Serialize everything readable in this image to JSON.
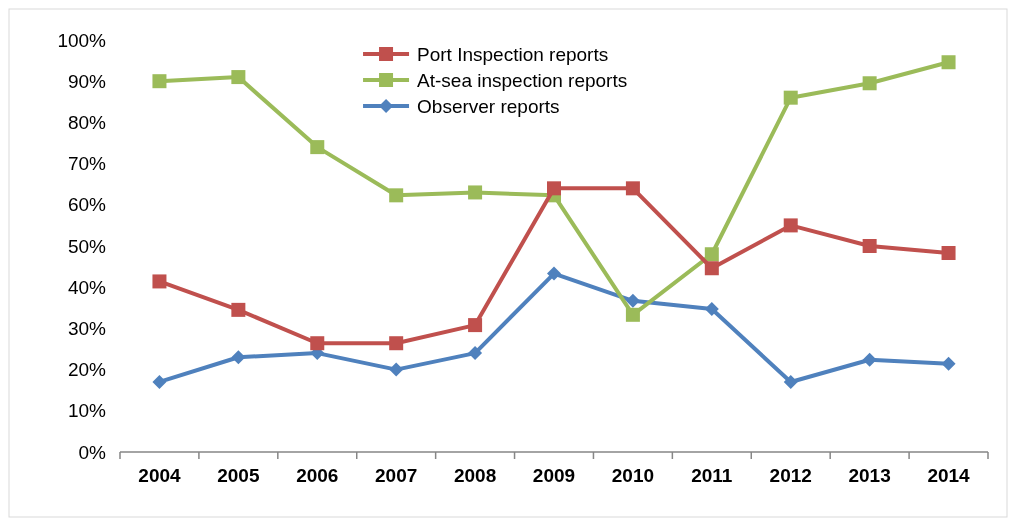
{
  "chart_data": {
    "type": "line",
    "categories": [
      "2004",
      "2005",
      "2006",
      "2007",
      "2008",
      "2009",
      "2010",
      "2011",
      "2012",
      "2013",
      "2014"
    ],
    "ylim": [
      0,
      100
    ],
    "yticks": [
      {
        "value": 0,
        "label": "0%"
      },
      {
        "value": 10,
        "label": "10%"
      },
      {
        "value": 20,
        "label": "20%"
      },
      {
        "value": 30,
        "label": "30%"
      },
      {
        "value": 40,
        "label": "40%"
      },
      {
        "value": 50,
        "label": "50%"
      },
      {
        "value": 60,
        "label": "60%"
      },
      {
        "value": 70,
        "label": "70%"
      },
      {
        "value": 80,
        "label": "80%"
      },
      {
        "value": 90,
        "label": "90%"
      },
      {
        "value": 100,
        "label": "100%"
      }
    ],
    "grid": false,
    "legend": "top",
    "line_style": "solid",
    "series": [
      {
        "name": "Port Inspection reports",
        "color": "#c0504d",
        "marker": "square",
        "values": [
          41.4,
          34.5,
          26.4,
          26.4,
          30.8,
          64,
          64,
          44.6,
          55,
          50,
          48.3
        ]
      },
      {
        "name": "At-sea inspection reports",
        "color": "#9bbb59",
        "marker": "square",
        "values": [
          90,
          91,
          74,
          62.3,
          63,
          62.3,
          33.3,
          48,
          86,
          89.5,
          94.6
        ]
      },
      {
        "name": "Observer reports",
        "color": "#4f81bd",
        "marker": "diamond",
        "values": [
          17,
          23,
          24,
          20,
          24,
          43.3,
          36.7,
          34.7,
          17,
          22.4,
          21.4
        ]
      }
    ]
  }
}
